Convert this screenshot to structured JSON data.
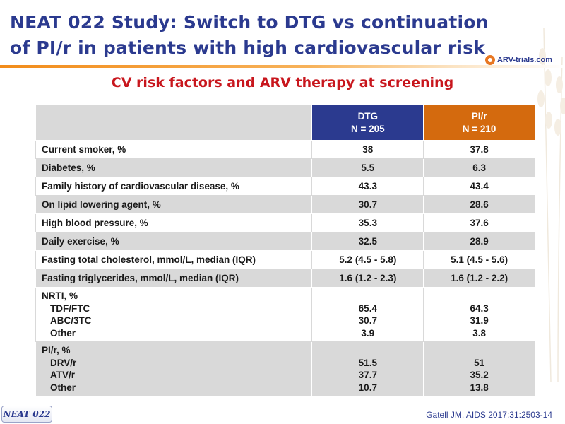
{
  "slide": {
    "title_line1": "NEAT 022 Study: Switch to DTG vs continuation",
    "title_line2": "of PI/r in patients with high cardiovascular risk",
    "subtitle": "CV risk factors and ARV therapy at screening",
    "logo_text": "ARV-trials.com",
    "badge": "NEAT 022",
    "citation": "Gatell JM. AIDS 2017;31:2503-14"
  },
  "colors": {
    "title": "#2b3a8f",
    "subtitle": "#c8161d",
    "dtg_header": "#2b3a8f",
    "pir_header": "#d46a0e",
    "row_shade": "#d9d9d9",
    "accent_rule": "#f28c1a"
  },
  "table": {
    "columns": [
      {
        "name": "DTG",
        "n": "N = 205"
      },
      {
        "name": "PI/r",
        "n": "N = 210"
      }
    ],
    "rows": [
      {
        "label": "Current smoker, %",
        "dtg": "38",
        "pir": "37.8"
      },
      {
        "label": "Diabetes, %",
        "dtg": "5.5",
        "pir": "6.3"
      },
      {
        "label": "Family history of cardiovascular disease, %",
        "dtg": "43.3",
        "pir": "43.4"
      },
      {
        "label": "On lipid lowering agent, %",
        "dtg": "30.7",
        "pir": "28.6"
      },
      {
        "label": "High blood pressure, %",
        "dtg": "35.3",
        "pir": "37.6"
      },
      {
        "label": "Daily exercise, %",
        "dtg": "32.5",
        "pir": "28.9"
      },
      {
        "label": "Fasting total cholesterol, mmol/L, median (IQR)",
        "dtg": "5.2 (4.5 - 5.8)",
        "pir": "5.1 (4.5 - 5.6)"
      },
      {
        "label": "Fasting triglycerides, mmol/L, median (IQR)",
        "dtg": "1.6 (1.2 - 2.3)",
        "pir": "1.6 (1.2 - 2.2)"
      }
    ],
    "nrti": {
      "label": "NRTI, %",
      "items": [
        {
          "label": "TDF/FTC",
          "dtg": "65.4",
          "pir": "64.3"
        },
        {
          "label": "ABC/3TC",
          "dtg": "30.7",
          "pir": "31.9"
        },
        {
          "label": "Other",
          "dtg": "3.9",
          "pir": "3.8"
        }
      ]
    },
    "pir_group": {
      "label": "PI/r, %",
      "items": [
        {
          "label": "DRV/r",
          "dtg": "51.5",
          "pir": "51"
        },
        {
          "label": "ATV/r",
          "dtg": "37.7",
          "pir": "35.2"
        },
        {
          "label": "Other",
          "dtg": "10.7",
          "pir": "13.8"
        }
      ]
    }
  }
}
